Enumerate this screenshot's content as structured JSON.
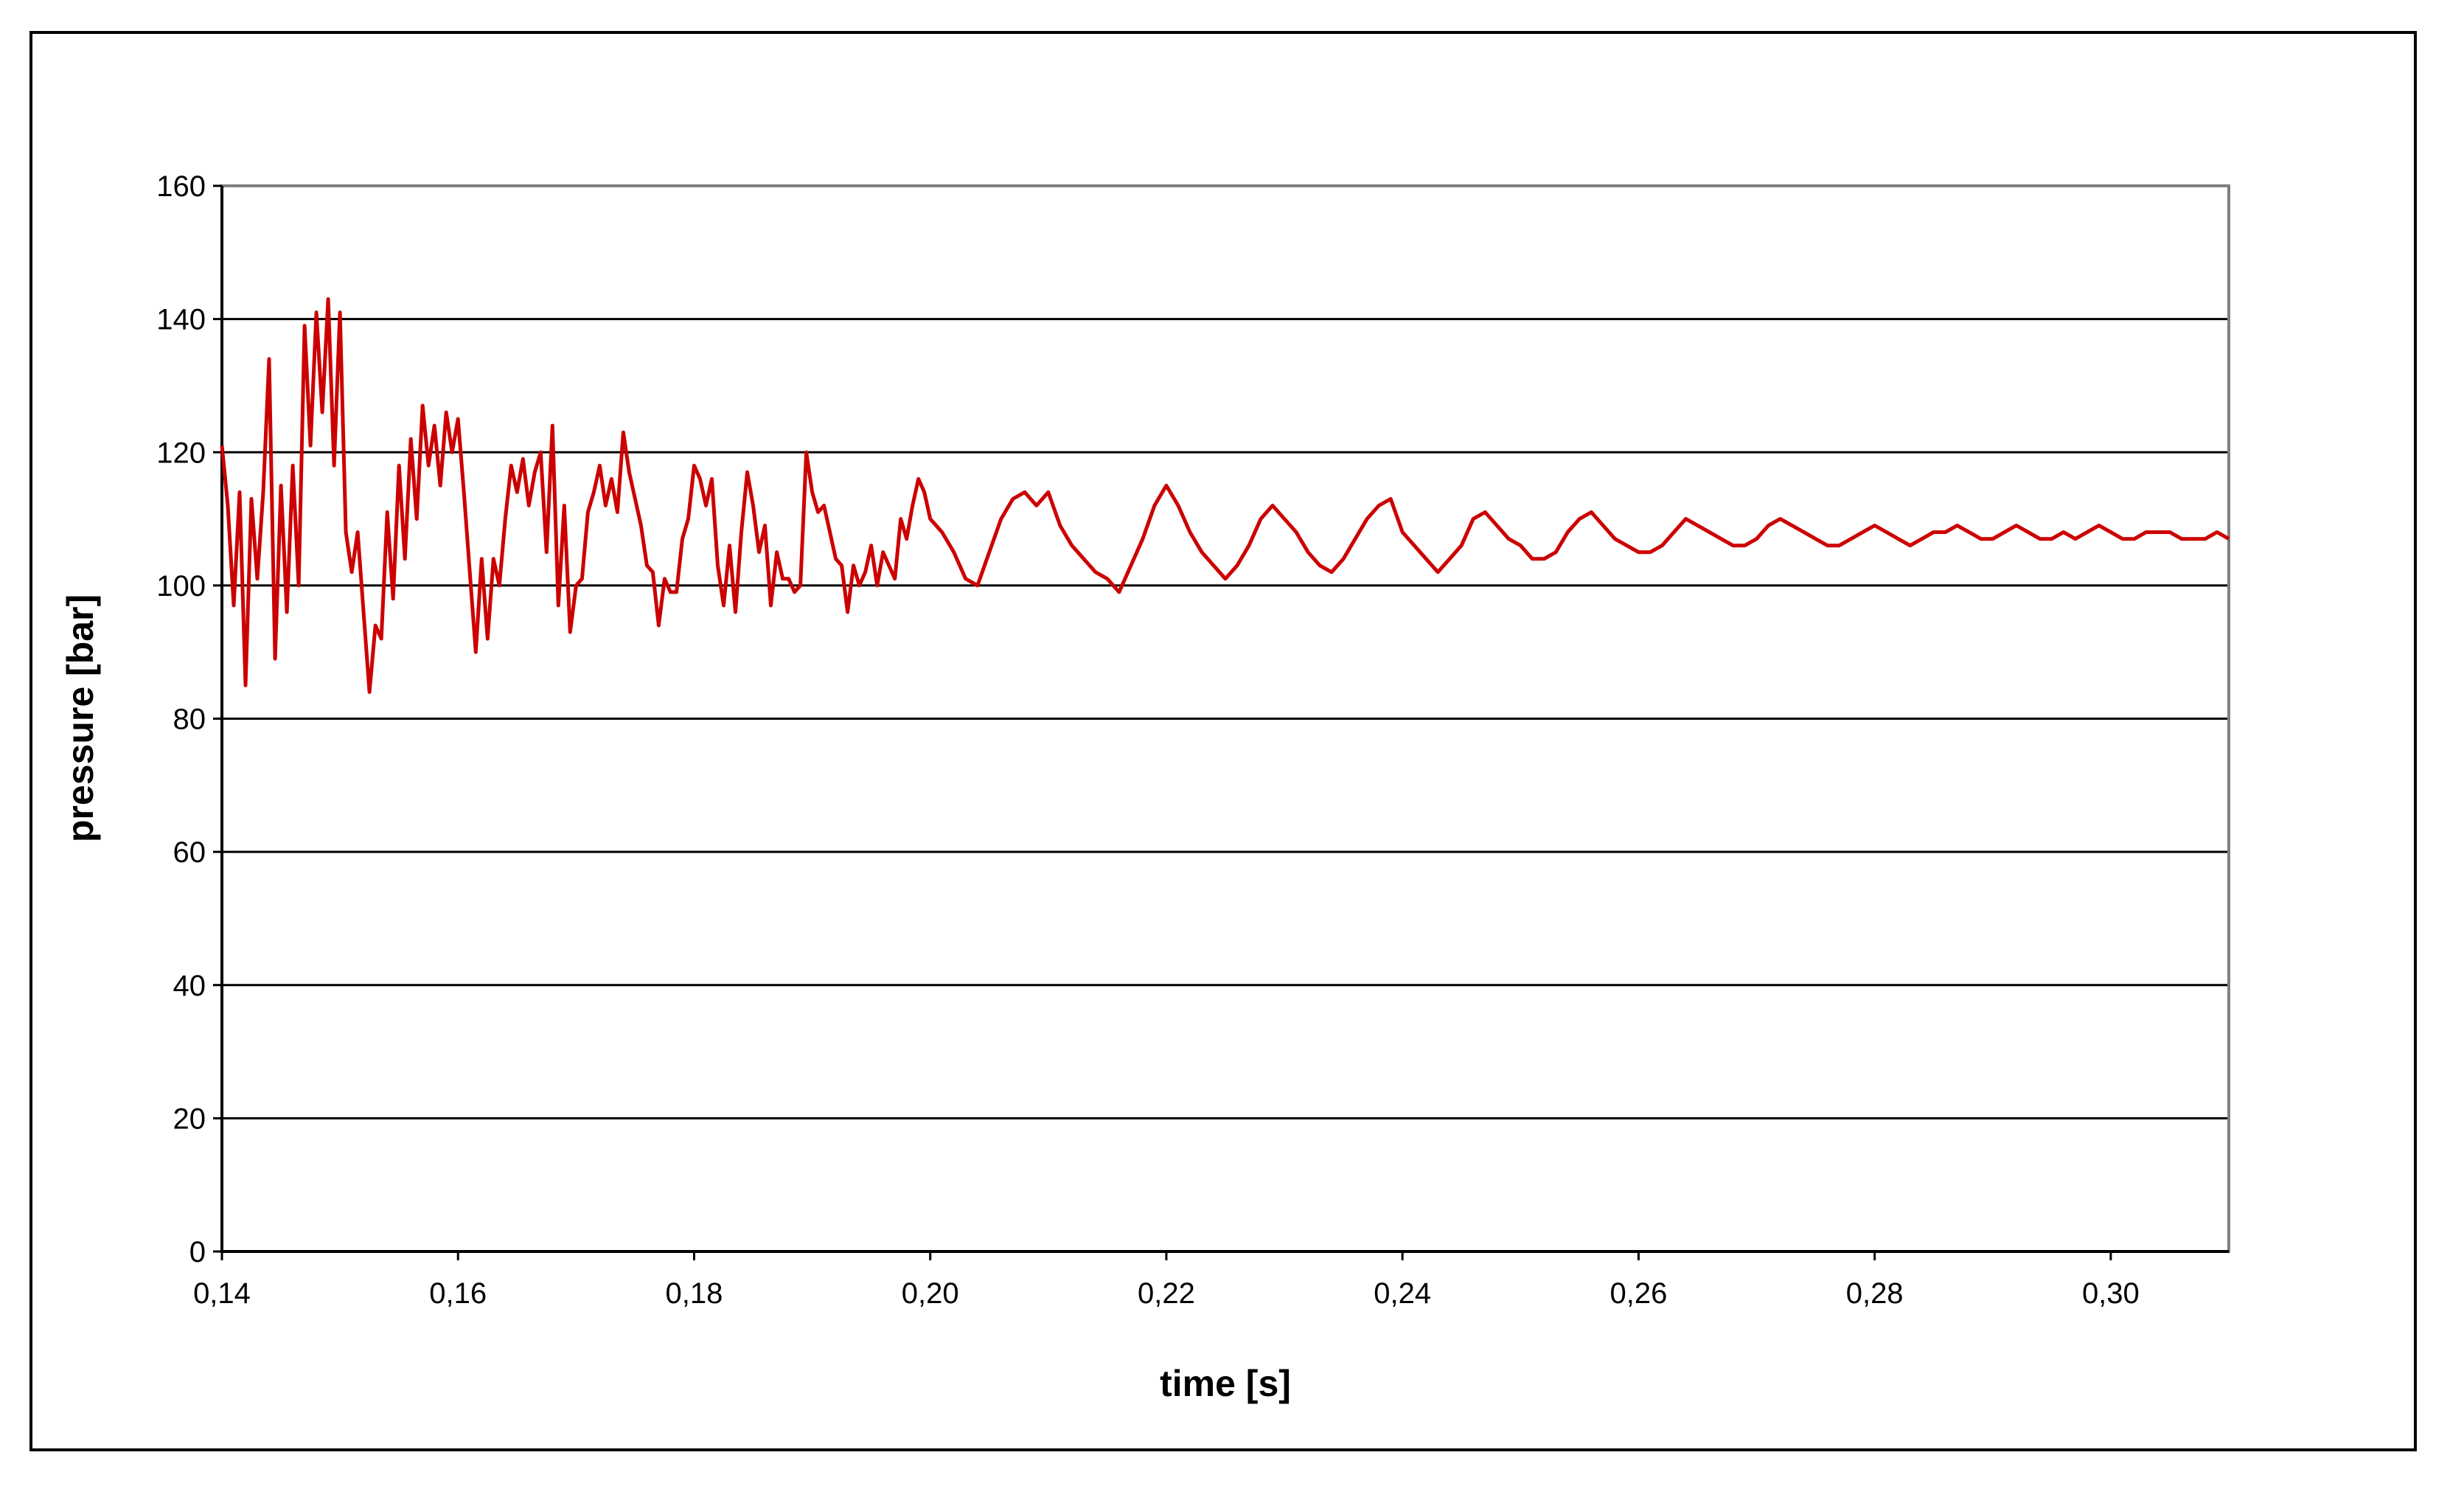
{
  "chart_data": {
    "type": "line",
    "title": "",
    "xlabel": "time [s]",
    "ylabel": "pressure [bar]",
    "xlim": [
      0.14,
      0.31
    ],
    "ylim": [
      0,
      160
    ],
    "grid": "horizontal",
    "legend": "none",
    "x_ticks": [
      "0,14",
      "0,16",
      "0,18",
      "0,20",
      "0,22",
      "0,24",
      "0,26",
      "0,28",
      "0,30"
    ],
    "x_tick_values": [
      0.14,
      0.16,
      0.18,
      0.2,
      0.22,
      0.24,
      0.26,
      0.28,
      0.3
    ],
    "y_ticks": [
      "0",
      "20",
      "40",
      "60",
      "80",
      "100",
      "120",
      "140",
      "160"
    ],
    "y_tick_values": [
      0,
      20,
      40,
      60,
      80,
      100,
      120,
      140,
      160
    ],
    "series": [
      {
        "color": "#cc0000",
        "x": [
          0.14,
          0.1405,
          0.141,
          0.1415,
          0.142,
          0.1425,
          0.143,
          0.1435,
          0.144,
          0.1445,
          0.145,
          0.1455,
          0.146,
          0.1465,
          0.147,
          0.1475,
          0.148,
          0.1485,
          0.149,
          0.1495,
          0.15,
          0.1505,
          0.151,
          0.1515,
          0.152,
          0.1525,
          0.153,
          0.1535,
          0.154,
          0.1545,
          0.155,
          0.1555,
          0.156,
          0.1565,
          0.157,
          0.1575,
          0.158,
          0.1585,
          0.159,
          0.1595,
          0.16,
          0.1605,
          0.161,
          0.1615,
          0.162,
          0.1625,
          0.163,
          0.1635,
          0.164,
          0.1645,
          0.165,
          0.1655,
          0.166,
          0.1665,
          0.167,
          0.1675,
          0.168,
          0.1685,
          0.169,
          0.1695,
          0.17,
          0.1705,
          0.171,
          0.1715,
          0.172,
          0.1725,
          0.173,
          0.1735,
          0.174,
          0.1745,
          0.175,
          0.1755,
          0.176,
          0.1765,
          0.177,
          0.1775,
          0.178,
          0.1785,
          0.179,
          0.1795,
          0.18,
          0.1805,
          0.181,
          0.1815,
          0.182,
          0.1825,
          0.183,
          0.1835,
          0.184,
          0.1845,
          0.185,
          0.1855,
          0.186,
          0.1865,
          0.187,
          0.1875,
          0.188,
          0.1885,
          0.189,
          0.1895,
          0.19,
          0.1905,
          0.191,
          0.1915,
          0.192,
          0.1925,
          0.193,
          0.1935,
          0.194,
          0.1945,
          0.195,
          0.1955,
          0.196,
          0.1965,
          0.197,
          0.1975,
          0.198,
          0.1985,
          0.199,
          0.1995,
          0.2,
          0.201,
          0.202,
          0.203,
          0.204,
          0.205,
          0.206,
          0.207,
          0.208,
          0.209,
          0.21,
          0.211,
          0.212,
          0.213,
          0.214,
          0.215,
          0.216,
          0.217,
          0.218,
          0.219,
          0.22,
          0.221,
          0.222,
          0.223,
          0.224,
          0.225,
          0.226,
          0.227,
          0.228,
          0.229,
          0.23,
          0.231,
          0.232,
          0.233,
          0.234,
          0.235,
          0.236,
          0.237,
          0.238,
          0.239,
          0.24,
          0.241,
          0.242,
          0.243,
          0.244,
          0.245,
          0.246,
          0.247,
          0.248,
          0.249,
          0.25,
          0.251,
          0.252,
          0.253,
          0.254,
          0.255,
          0.256,
          0.257,
          0.258,
          0.259,
          0.26,
          0.261,
          0.262,
          0.263,
          0.264,
          0.265,
          0.266,
          0.267,
          0.268,
          0.269,
          0.27,
          0.271,
          0.272,
          0.273,
          0.274,
          0.275,
          0.276,
          0.277,
          0.278,
          0.279,
          0.28,
          0.281,
          0.282,
          0.283,
          0.284,
          0.285,
          0.286,
          0.287,
          0.288,
          0.289,
          0.29,
          0.291,
          0.292,
          0.293,
          0.294,
          0.295,
          0.296,
          0.297,
          0.298,
          0.299,
          0.3,
          0.301,
          0.302,
          0.303,
          0.304,
          0.305,
          0.306,
          0.307,
          0.308,
          0.309,
          0.31
        ],
        "y": [
          121,
          112,
          97,
          114,
          85,
          113,
          101,
          114,
          134,
          89,
          115,
          96,
          118,
          100,
          139,
          121,
          141,
          126,
          143,
          118,
          141,
          108,
          102,
          108,
          96,
          84,
          94,
          92,
          111,
          98,
          118,
          104,
          122,
          110,
          127,
          118,
          124,
          115,
          126,
          120,
          125,
          114,
          102,
          90,
          104,
          92,
          104,
          100,
          110,
          118,
          114,
          119,
          112,
          117,
          120,
          105,
          124,
          97,
          112,
          93,
          100,
          101,
          111,
          114,
          118,
          112,
          116,
          111,
          123,
          117,
          113,
          109,
          103,
          102,
          94,
          101,
          99,
          99,
          107,
          110,
          118,
          116,
          112,
          116,
          103,
          97,
          106,
          96,
          108,
          117,
          112,
          105,
          109,
          97,
          105,
          101,
          101,
          99,
          100,
          120,
          114,
          111,
          112,
          108,
          104,
          103,
          96,
          103,
          100,
          102,
          106,
          100,
          105,
          103,
          101,
          110,
          107,
          112,
          116,
          114,
          110,
          108,
          105,
          101,
          100,
          105,
          110,
          113,
          114,
          112,
          114,
          109,
          106,
          104,
          102,
          101,
          99,
          103,
          107,
          112,
          115,
          112,
          108,
          105,
          103,
          101,
          103,
          106,
          110,
          112,
          110,
          108,
          105,
          103,
          102,
          104,
          107,
          110,
          112,
          113,
          108,
          106,
          104,
          102,
          104,
          106,
          110,
          111,
          109,
          107,
          106,
          104,
          104,
          105,
          108,
          110,
          111,
          109,
          107,
          106,
          105,
          105,
          106,
          108,
          110,
          109,
          108,
          107,
          106,
          106,
          107,
          109,
          110,
          109,
          108,
          107,
          106,
          106,
          107,
          108,
          109,
          108,
          107,
          106,
          107,
          108,
          108,
          109,
          108,
          107,
          107,
          108,
          109,
          108,
          107,
          107,
          108,
          107,
          108,
          109,
          108,
          107,
          107,
          108,
          108,
          108,
          107,
          107,
          107,
          108,
          107
        ]
      }
    ]
  }
}
